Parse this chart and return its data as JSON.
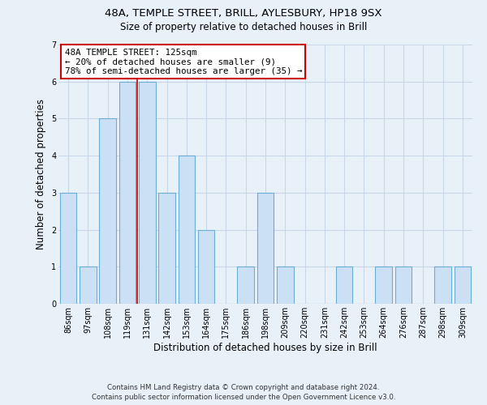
{
  "title_line1": "48A, TEMPLE STREET, BRILL, AYLESBURY, HP18 9SX",
  "title_line2": "Size of property relative to detached houses in Brill",
  "xlabel": "Distribution of detached houses by size in Brill",
  "ylabel": "Number of detached properties",
  "bar_labels": [
    "86sqm",
    "97sqm",
    "108sqm",
    "119sqm",
    "131sqm",
    "142sqm",
    "153sqm",
    "164sqm",
    "175sqm",
    "186sqm",
    "198sqm",
    "209sqm",
    "220sqm",
    "231sqm",
    "242sqm",
    "253sqm",
    "264sqm",
    "276sqm",
    "287sqm",
    "298sqm",
    "309sqm"
  ],
  "bar_heights": [
    3,
    1,
    5,
    6,
    6,
    3,
    4,
    2,
    0,
    1,
    3,
    1,
    0,
    0,
    1,
    0,
    1,
    1,
    0,
    1,
    1
  ],
  "bar_color": "#cce0f5",
  "bar_edgecolor": "#6aaed6",
  "ylim": [
    0,
    7
  ],
  "yticks": [
    0,
    1,
    2,
    3,
    4,
    5,
    6,
    7
  ],
  "property_label": "48A TEMPLE STREET: 125sqm",
  "annotation_line1": "← 20% of detached houses are smaller (9)",
  "annotation_line2": "78% of semi-detached houses are larger (35) →",
  "vline_color": "#cc0000",
  "annotation_box_color": "#ffffff",
  "annotation_box_edgecolor": "#cc0000",
  "footer_line1": "Contains HM Land Registry data © Crown copyright and database right 2024.",
  "footer_line2": "Contains public sector information licensed under the Open Government Licence v3.0.",
  "grid_color": "#c8d8e8",
  "background_color": "#e8f0f8",
  "title_fontsize": 9.5,
  "subtitle_fontsize": 8.5,
  "xlabel_fontsize": 8.5,
  "ylabel_fontsize": 8.5,
  "tick_fontsize": 7,
  "annotation_fontsize": 7.8,
  "footer_fontsize": 6.2
}
